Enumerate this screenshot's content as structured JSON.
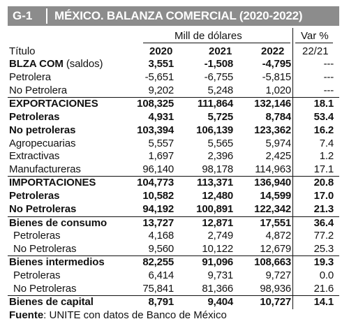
{
  "header": {
    "code": "G-1",
    "title": "MÉXICO. BALANZA COMERCIAL (2020-2022)",
    "units": "Mill de dólares",
    "var_label": "Var %",
    "var_period": "22/21",
    "col_title": "Título",
    "years": [
      "2020",
      "2021",
      "2022"
    ]
  },
  "rows": [
    {
      "label": "BLZA COM",
      "label_suffix": " (saldos)",
      "v2020": "3,551",
      "v2021": "-1,508",
      "v2022": "-4,795",
      "var": "---"
    },
    {
      "label": "Petrolera",
      "v2020": "-5,651",
      "v2021": "-6,755",
      "v2022": "-5,815",
      "var": "---"
    },
    {
      "label": "No Petrolera",
      "v2020": "9,202",
      "v2021": "5,248",
      "v2022": "1,020",
      "var": "---"
    },
    {
      "label": "EXPORTACIONES",
      "v2020": "108,325",
      "v2021": "111,864",
      "v2022": "132,146",
      "var": "18.1"
    },
    {
      "label": "Petroleras",
      "v2020": "4,931",
      "v2021": "5,725",
      "v2022": "8,784",
      "var": "53.4"
    },
    {
      "label": "No petroleras",
      "v2020": "103,394",
      "v2021": "106,139",
      "v2022": "123,362",
      "var": "16.2"
    },
    {
      "label": "Agropecuarias",
      "v2020": "5,557",
      "v2021": "5,565",
      "v2022": "5,974",
      "var": "7.4"
    },
    {
      "label": "Extractivas",
      "v2020": "1,697",
      "v2021": "2,396",
      "v2022": "2,425",
      "var": "1.2"
    },
    {
      "label": "Manufactureras",
      "v2020": "96,140",
      "v2021": "98,178",
      "v2022": "114,963",
      "var": "17.1"
    },
    {
      "label": "IMPORTACIONES",
      "v2020": "104,773",
      "v2021": "113,371",
      "v2022": "136,940",
      "var": "20.8"
    },
    {
      "label": "Petroleras",
      "v2020": "10,582",
      "v2021": "12,480",
      "v2022": "14,599",
      "var": "17.0"
    },
    {
      "label": "No Petroleras",
      "v2020": "94,192",
      "v2021": "100,891",
      "v2022": "122,342",
      "var": "21.3"
    },
    {
      "label": "Bienes de consumo",
      "v2020": "13,727",
      "v2021": "12,871",
      "v2022": "17,551",
      "var": "36.4"
    },
    {
      "label": "Petroleras",
      "v2020": "4,168",
      "v2021": "2,749",
      "v2022": "4,872",
      "var": "77.2"
    },
    {
      "label": "No Petroleras",
      "v2020": "9,560",
      "v2021": "10,122",
      "v2022": "12,679",
      "var": "25.3"
    },
    {
      "label": "Bienes intermedios",
      "v2020": "82,255",
      "v2021": "91,096",
      "v2022": "108,663",
      "var": "19.3"
    },
    {
      "label": "Petroleras",
      "v2020": "6,414",
      "v2021": "9,731",
      "v2022": "9,727",
      "var": "0.0"
    },
    {
      "label": "No Petroleras",
      "v2020": "75,841",
      "v2021": "81,366",
      "v2022": "98,936",
      "var": "21.6"
    },
    {
      "label": "Bienes de capital",
      "v2020": "8,791",
      "v2021": "9,404",
      "v2022": "10,727",
      "var": "14.1"
    }
  ],
  "source": {
    "label": "Fuente",
    "text": ": UNITE con datos de Banco de México"
  }
}
